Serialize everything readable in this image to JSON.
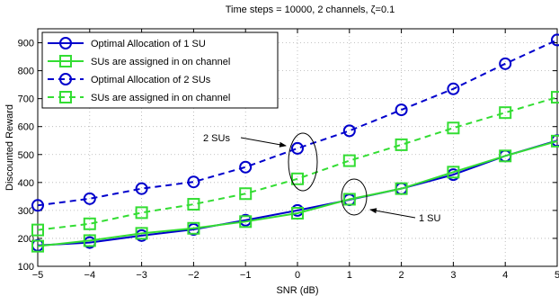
{
  "chart_data": {
    "type": "line",
    "title": "Time steps = 10000, 2 channels, ζ=0.1",
    "xlabel": "SNR (dB)",
    "ylabel": "Discounted Reward",
    "xlim": [
      -5,
      5
    ],
    "ylim": [
      100,
      950
    ],
    "xticks": [
      -5,
      -4,
      -3,
      -2,
      -1,
      0,
      1,
      2,
      3,
      4,
      5
    ],
    "yticks": [
      100,
      200,
      300,
      400,
      500,
      600,
      700,
      800,
      900
    ],
    "grid": true,
    "legend_position": "top-left",
    "x": [
      -5,
      -4,
      -3,
      -2,
      -1,
      0,
      1,
      2,
      3,
      4,
      5
    ],
    "series": [
      {
        "name": "Optimal Allocation of 1 SU",
        "color": "#0000cc",
        "marker": "circle",
        "dash": "solid",
        "values": [
          175,
          185,
          210,
          232,
          265,
          300,
          338,
          378,
          428,
          495,
          550
        ]
      },
      {
        "name": "SUs are assigned in on channel",
        "color": "#33dd33",
        "marker": "square",
        "dash": "solid",
        "values": [
          172,
          192,
          218,
          236,
          260,
          290,
          340,
          378,
          437,
          495,
          548
        ]
      },
      {
        "name": "Optimal Allocation of 2 SUs",
        "color": "#0000cc",
        "marker": "circle",
        "dash": "dashed",
        "values": [
          318,
          342,
          378,
          402,
          455,
          522,
          585,
          660,
          735,
          825,
          910
        ]
      },
      {
        "name": "SUs are assigned in on channel",
        "color": "#33dd33",
        "marker": "square",
        "dash": "dashed",
        "values": [
          230,
          252,
          292,
          322,
          360,
          413,
          478,
          535,
          595,
          650,
          705
        ]
      }
    ],
    "annotations": [
      {
        "text": "2 SUs",
        "x": 0,
        "y": 522
      },
      {
        "text": "1 SU",
        "x": 1,
        "y": 338
      }
    ]
  }
}
